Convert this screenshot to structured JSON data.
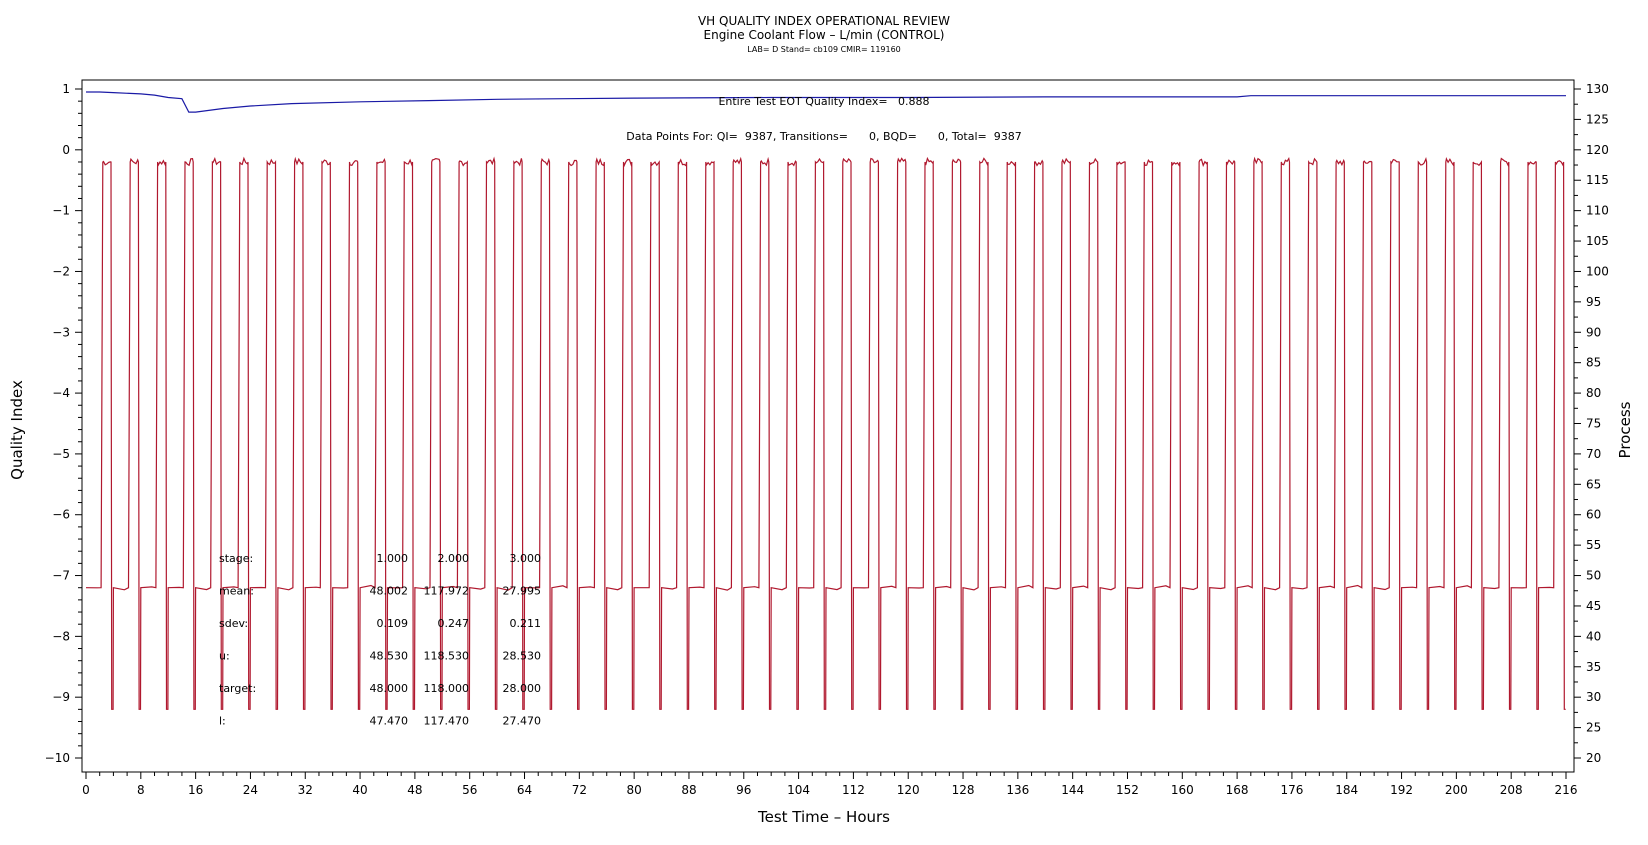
{
  "chart_data": {
    "type": "line",
    "title": "VH QUALITY INDEX OPERATIONAL REVIEW",
    "subtitle": "Engine Coolant Flow – L/min (CONTROL)",
    "subtitle2": "LAB= D Stand= cb109 CMIR= 119160",
    "xlabel": "Test Time – Hours",
    "ylabel_left": "Quality Index",
    "ylabel_right": "Process",
    "xlim": [
      0,
      216
    ],
    "ylim_left": [
      -10,
      1
    ],
    "ylim_right": [
      20,
      130
    ],
    "x_ticks": [
      0,
      8,
      16,
      24,
      32,
      40,
      48,
      56,
      64,
      72,
      80,
      88,
      96,
      104,
      112,
      120,
      128,
      136,
      144,
      152,
      160,
      168,
      176,
      184,
      192,
      200,
      208,
      216
    ],
    "y_ticks_left": [
      1,
      0,
      -1,
      -2,
      -3,
      -4,
      -5,
      -6,
      -7,
      -8,
      -9,
      -10
    ],
    "y_ticks_right": [
      130,
      125,
      120,
      115,
      110,
      105,
      100,
      95,
      90,
      85,
      80,
      75,
      70,
      65,
      60,
      55,
      50,
      45,
      40,
      35,
      30,
      25,
      20
    ],
    "annotations": {
      "eot": "Entire Test EOT Quality Index=   0.888",
      "points": "Data Points For: QI=  9387, Transitions=      0, BQD=      0, Total=  9387"
    },
    "series": [
      {
        "name": "Quality Index",
        "axis": "left",
        "color": "#1a1aa6",
        "x": [
          0,
          2,
          4,
          8,
          10,
          12,
          14,
          15,
          16,
          20,
          24,
          30,
          40,
          50,
          60,
          70,
          80,
          100,
          120,
          140,
          160,
          168,
          170,
          186,
          190,
          200,
          210,
          216
        ],
        "y": [
          0.95,
          0.95,
          0.94,
          0.92,
          0.9,
          0.86,
          0.84,
          0.62,
          0.62,
          0.68,
          0.72,
          0.76,
          0.79,
          0.81,
          0.83,
          0.84,
          0.85,
          0.86,
          0.86,
          0.87,
          0.87,
          0.87,
          0.89,
          0.89,
          0.89,
          0.89,
          0.89,
          0.89
        ]
      },
      {
        "name": "Process",
        "axis": "right",
        "color": "#b0182e",
        "pattern": "cyclic",
        "period_h": 4,
        "cycles": 54,
        "levels": [
          48,
          118,
          28
        ],
        "low_cycles": [
          1,
          2,
          3,
          4,
          5,
          6,
          7,
          8,
          9,
          10,
          11,
          12,
          13,
          14,
          15,
          16,
          17,
          18,
          19,
          20,
          21,
          22,
          23,
          24,
          25,
          26,
          27,
          28,
          29,
          30,
          31,
          32,
          33,
          34,
          35,
          36,
          37,
          38,
          39,
          40,
          41,
          42,
          43,
          44,
          45,
          46,
          47,
          48,
          49,
          50,
          51,
          52,
          53,
          54
        ]
      }
    ],
    "stats_table": {
      "rows": [
        {
          "label": "stage:",
          "values": [
            "1.000",
            "2.000",
            "3.000"
          ]
        },
        {
          "label": "mean:",
          "values": [
            "48.002",
            "117.972",
            "27.995"
          ]
        },
        {
          "label": "sdev:",
          "values": [
            "0.109",
            "0.247",
            "0.211"
          ]
        },
        {
          "label": "u:",
          "values": [
            "48.530",
            "118.530",
            "28.530"
          ]
        },
        {
          "label": "target:",
          "values": [
            "48.000",
            "118.000",
            "28.000"
          ]
        },
        {
          "label": "l:",
          "values": [
            "47.470",
            "117.470",
            "27.470"
          ]
        }
      ]
    },
    "grid": false
  }
}
